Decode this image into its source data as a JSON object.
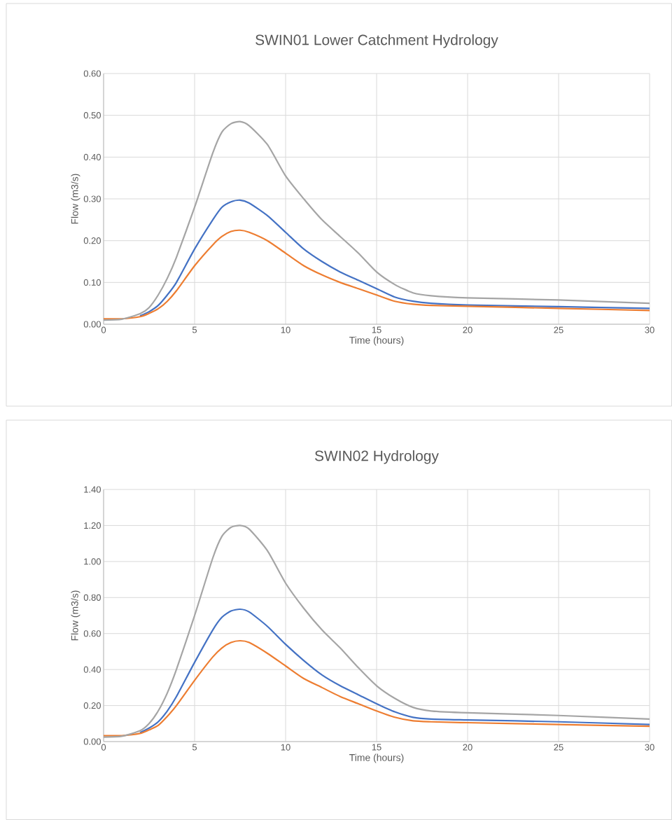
{
  "chart_data": [
    {
      "type": "line",
      "title": "SWIN01 Lower Catchment Hydrology",
      "xlabel": "Time (hours)",
      "ylabel": "Flow (m3/s)",
      "x": [
        0,
        1,
        2,
        2.5,
        3,
        3.5,
        4,
        5,
        6,
        6.5,
        7,
        7.5,
        8,
        9,
        10,
        11,
        12,
        13,
        14,
        15,
        16,
        17,
        18,
        20,
        25,
        30
      ],
      "series": [
        {
          "color": "#4472c4",
          "values": [
            null,
            null,
            0.02,
            0.03,
            0.045,
            0.07,
            0.1,
            0.18,
            0.25,
            0.28,
            0.293,
            0.297,
            0.29,
            0.26,
            0.22,
            0.18,
            0.15,
            0.125,
            0.105,
            0.085,
            0.065,
            0.055,
            0.05,
            0.046,
            0.042,
            0.038
          ]
        },
        {
          "color": "#ed7d31",
          "values": [
            0.013,
            0.013,
            0.018,
            0.026,
            0.037,
            0.055,
            0.08,
            0.14,
            0.19,
            0.21,
            0.222,
            0.225,
            0.22,
            0.2,
            0.17,
            0.14,
            0.118,
            0.1,
            0.085,
            0.07,
            0.055,
            0.048,
            0.045,
            0.043,
            0.038,
            0.033
          ]
        },
        {
          "color": "#a5a5a5",
          "values": [
            0.01,
            0.012,
            0.025,
            0.04,
            0.07,
            0.11,
            0.16,
            0.28,
            0.41,
            0.46,
            0.48,
            0.485,
            0.475,
            0.43,
            0.355,
            0.3,
            0.25,
            0.21,
            0.17,
            0.125,
            0.095,
            0.075,
            0.068,
            0.063,
            0.058,
            0.05
          ]
        }
      ],
      "xlim": [
        0,
        30
      ],
      "xticks": [
        0,
        5,
        10,
        15,
        20,
        25,
        30
      ],
      "ylim": [
        0,
        0.6
      ],
      "yticks": [
        {
          "value": 0,
          "label": "0.00"
        },
        {
          "value": 0.1,
          "label": "0.10"
        },
        {
          "value": 0.2,
          "label": "0.20"
        },
        {
          "value": 0.3,
          "label": "0.30"
        },
        {
          "value": 0.4,
          "label": "0.40"
        },
        {
          "value": 0.5,
          "label": "0.50"
        },
        {
          "value": 0.6,
          "label": "0.60"
        }
      ],
      "grid": true
    },
    {
      "type": "line",
      "title": "SWIN02 Hydrology",
      "xlabel": "Time (hours)",
      "ylabel": "Flow (m3/s)",
      "x": [
        0,
        1,
        2,
        2.5,
        3,
        3.5,
        4,
        5,
        6,
        6.5,
        7,
        7.5,
        8,
        9,
        10,
        11,
        12,
        13,
        14,
        15,
        16,
        17,
        18,
        20,
        25,
        30
      ],
      "series": [
        {
          "color": "#4472c4",
          "values": [
            null,
            null,
            0.05,
            0.075,
            0.11,
            0.17,
            0.25,
            0.44,
            0.62,
            0.69,
            0.725,
            0.735,
            0.72,
            0.64,
            0.54,
            0.45,
            0.37,
            0.31,
            0.26,
            0.21,
            0.165,
            0.135,
            0.125,
            0.12,
            0.11,
            0.095
          ]
        },
        {
          "color": "#ed7d31",
          "values": [
            0.033,
            0.033,
            0.045,
            0.065,
            0.09,
            0.14,
            0.2,
            0.34,
            0.47,
            0.52,
            0.55,
            0.56,
            0.55,
            0.49,
            0.42,
            0.35,
            0.3,
            0.25,
            0.21,
            0.17,
            0.135,
            0.115,
            0.11,
            0.105,
            0.095,
            0.085
          ]
        },
        {
          "color": "#a5a5a5",
          "values": [
            0.025,
            0.03,
            0.06,
            0.1,
            0.17,
            0.27,
            0.4,
            0.7,
            1.02,
            1.14,
            1.19,
            1.2,
            1.18,
            1.06,
            0.88,
            0.74,
            0.62,
            0.52,
            0.41,
            0.31,
            0.24,
            0.19,
            0.17,
            0.16,
            0.145,
            0.125
          ]
        }
      ],
      "xlim": [
        0,
        30
      ],
      "xticks": [
        0,
        5,
        10,
        15,
        20,
        25,
        30
      ],
      "ylim": [
        0,
        1.4
      ],
      "yticks": [
        {
          "value": 0,
          "label": "0.00"
        },
        {
          "value": 0.2,
          "label": "0.20"
        },
        {
          "value": 0.4,
          "label": "0.40"
        },
        {
          "value": 0.6,
          "label": "0.60"
        },
        {
          "value": 0.8,
          "label": "0.80"
        },
        {
          "value": 1.0,
          "label": "1.00"
        },
        {
          "value": 1.2,
          "label": "1.20"
        },
        {
          "value": 1.4,
          "label": "1.40"
        }
      ],
      "grid": true
    }
  ]
}
